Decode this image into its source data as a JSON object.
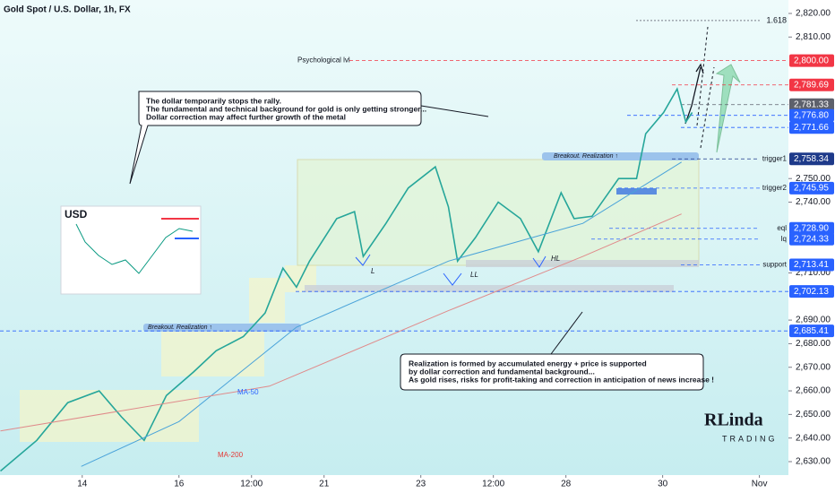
{
  "chart_data": {
    "type": "line",
    "title": "Gold Spot / U.S. Dollar, 1h, FX",
    "xlim": [
      -1.7,
      14.6
    ],
    "xticks": [
      {
        "value": 0,
        "label": "14"
      },
      {
        "value": 2,
        "label": "16"
      },
      {
        "value": 3.5,
        "label": "12:00"
      },
      {
        "value": 5,
        "label": "21"
      },
      {
        "value": 7,
        "label": "23"
      },
      {
        "value": 8.5,
        "label": "12:00"
      },
      {
        "value": 10,
        "label": "28"
      },
      {
        "value": 12,
        "label": "30"
      },
      {
        "value": 14,
        "label": "Nov"
      }
    ],
    "ylim": [
      2630,
      2820
    ],
    "yticks": [
      {
        "value": 2630,
        "label": "2,630.00"
      },
      {
        "value": 2640,
        "label": "2,640.00"
      },
      {
        "value": 2650,
        "label": "2,650.00"
      },
      {
        "value": 2660,
        "label": "2,660.00"
      },
      {
        "value": 2670,
        "label": "2,670.00"
      },
      {
        "value": 2680,
        "label": "2,680.00"
      },
      {
        "value": 2690,
        "label": "2,690.00"
      },
      {
        "value": 2710,
        "label": "2,710.00"
      },
      {
        "value": 2740,
        "label": "2,740.00"
      },
      {
        "value": 2750,
        "label": "2,750.00"
      },
      {
        "value": 2810,
        "label": "2,810.00"
      },
      {
        "value": 2820,
        "label": "2,820.00"
      }
    ],
    "series": [
      {
        "color": "#26a69a",
        "x": [
          -1.69,
          -0.94,
          -0.3,
          0.35,
          0.81,
          1.28,
          1.74,
          2.3,
          2.77,
          3.33,
          3.78,
          4.15,
          4.43,
          4.7,
          5.26,
          5.63,
          5.81,
          6.28,
          6.74,
          7.3,
          7.57,
          7.76,
          8.13,
          8.6,
          9.06,
          9.43,
          9.9,
          10.17,
          10.54,
          11.09,
          11.46,
          11.65,
          12.02,
          12.3,
          12.48,
          12.61
        ],
        "values": [
          2626,
          2639,
          2655,
          2660,
          2649,
          2639,
          2658,
          2668,
          2677,
          2683,
          2693,
          2712,
          2704,
          2715,
          2733,
          2736,
          2717,
          2731,
          2746,
          2755,
          2738,
          2715,
          2725,
          2740,
          2733,
          2719,
          2744,
          2733,
          2734,
          2750,
          2750,
          2769,
          2778,
          2788,
          2774,
          2778
        ]
      },
      {
        "name": "MA-50",
        "color": "#4aa3d9",
        "x": [
          -0.02,
          2.0,
          4.43,
          7.57,
          10.35,
          12.39
        ],
        "values": [
          2628,
          2647,
          2687,
          2715,
          2731,
          2757
        ]
      },
      {
        "name": "MA-200",
        "color": "#e08a8a",
        "x": [
          -1.69,
          3.87,
          7.57,
          10.35,
          12.39
        ],
        "values": [
          2643,
          2662,
          2694,
          2717,
          2735
        ]
      }
    ],
    "levels": [
      {
        "value": 2800,
        "label": "2,800.00",
        "color": "#f23645",
        "name": "Psychological lvl"
      },
      {
        "value": 2789.69,
        "label": "2,789.69",
        "color": "#f23645"
      },
      {
        "value": 2781.33,
        "label": "2,781.33",
        "color": "#5d606b"
      },
      {
        "value": 2776.8,
        "label": "2,776.80",
        "color": "#2962ff"
      },
      {
        "value": 2771.66,
        "label": "2,771.66",
        "color": "#2962ff"
      },
      {
        "value": 2758.34,
        "label": "2,758.34",
        "color": "#1e3a8a",
        "name": "trigger1"
      },
      {
        "value": 2745.95,
        "label": "2,745.95",
        "color": "#2962ff",
        "name": "trigger2"
      },
      {
        "value": 2728.9,
        "label": "2,728.90",
        "color": "#2962ff",
        "name": "eql"
      },
      {
        "value": 2724.33,
        "label": "2,724.33",
        "color": "#2962ff",
        "name": "lq"
      },
      {
        "value": 2713.41,
        "label": "2,713.41",
        "color": "#2962ff",
        "name": "support"
      },
      {
        "value": 2702.13,
        "label": "2,702.13",
        "color": "#2962ff"
      },
      {
        "value": 2685.41,
        "label": "2,685.41",
        "color": "#2962ff"
      }
    ],
    "fib": {
      "value": 2817,
      "label": "1.618"
    },
    "annotations": {
      "note1": [
        "The dollar temporarily stops the rally.",
        "The fundamental and technical background for gold is only getting stronger...",
        "Dollar correction may affect further growth of the metal"
      ],
      "note2": [
        "Realization is formed by accumulated energy + price is supported",
        "by dollar correction and fundamental background...",
        "As gold rises, risks for profit-taking and correction in anticipation of news increase !"
      ],
      "breakout1": "Breakout. Realization ↑",
      "breakout2": "Breakout. Realization ↑",
      "L": "L",
      "LL": "LL",
      "HL": "HL",
      "inset": "USD",
      "logo1": "RLinda",
      "logo2": "TRADING"
    }
  }
}
